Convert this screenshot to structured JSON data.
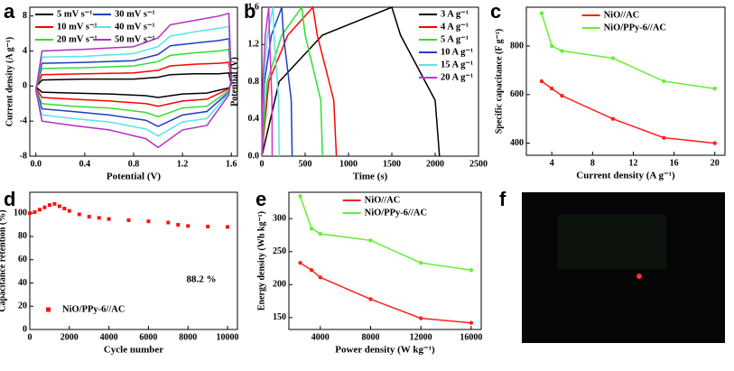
{
  "chart_data": [
    {
      "type": "line",
      "panel_label": "a",
      "xlabel": "Potential (V)",
      "ylabel": "Current density (A g⁻¹)",
      "xlim": [
        -0.05,
        1.65
      ],
      "ylim": [
        -8,
        9
      ],
      "xticks": [
        {
          "value": 0,
          "label": "0.0"
        },
        0.4,
        0.8,
        1.2,
        1.6
      ],
      "yticks": [
        -8,
        -4,
        0,
        4,
        8
      ],
      "legend": "upper left",
      "legend_columns": 2,
      "x": [
        0,
        0.05,
        0.4,
        0.8,
        1.0,
        1.1,
        1.3,
        1.5,
        1.58,
        1.6,
        1.58,
        1.4,
        1.2,
        1.0,
        0.9,
        0.6,
        0.3,
        0.05,
        0
      ],
      "series": [
        {
          "name": "5 mV s⁻¹",
          "color": "#000000",
          "values": [
            -0.1,
            0.7,
            0.8,
            0.8,
            1,
            1.3,
            1.4,
            1.4,
            1.5,
            0.2,
            -0.2,
            -0.8,
            -0.9,
            -1.3,
            -1.1,
            -0.9,
            -0.8,
            -0.7,
            -0.1
          ]
        },
        {
          "name": "10 mV s⁻¹",
          "color": "#ff0000",
          "values": [
            -0.2,
            1.3,
            1.4,
            1.5,
            1.8,
            2.3,
            2.5,
            2.6,
            2.7,
            0.3,
            -0.3,
            -1.5,
            -1.7,
            -2.3,
            -2,
            -1.7,
            -1.5,
            -1.3,
            -0.2
          ]
        },
        {
          "name": "20 mV s⁻¹",
          "color": "#33dd33",
          "values": [
            -0.3,
            2,
            2.1,
            2.3,
            2.8,
            3.5,
            3.8,
            4,
            4.2,
            0.5,
            -0.5,
            -2.3,
            -2.5,
            -3.5,
            -3,
            -2.5,
            -2.3,
            -2,
            -0.3
          ]
        },
        {
          "name": "30 mV s⁻¹",
          "color": "#1f3fbf",
          "values": [
            -0.3,
            2.6,
            2.7,
            2.9,
            3.6,
            4.6,
            4.9,
            5.2,
            5.4,
            0.7,
            -0.7,
            -2.9,
            -3.3,
            -4.6,
            -3.9,
            -3.3,
            -2.9,
            -2.6,
            -0.3
          ]
        },
        {
          "name": "40 mV s⁻¹",
          "color": "#55e6e6",
          "values": [
            -0.4,
            3.3,
            3.4,
            3.7,
            4.5,
            5.7,
            6.2,
            6.6,
            6.8,
            0.8,
            -0.8,
            -3.7,
            -4.1,
            -5.7,
            -4.9,
            -4.1,
            -3.7,
            -3.3,
            -0.4
          ]
        },
        {
          "name": "50 mV s⁻¹",
          "color": "#b030c0",
          "values": [
            -0.5,
            4,
            4.2,
            4.5,
            5.5,
            7,
            7.5,
            8,
            8.3,
            1,
            -1,
            -4.5,
            -5,
            -7,
            -6,
            -5,
            -4.5,
            -4,
            -0.5
          ]
        }
      ]
    },
    {
      "type": "line",
      "panel_label": "b",
      "xlabel": "Time (s)",
      "ylabel": "Potential (V)",
      "xlim": [
        0,
        2500
      ],
      "ylim": [
        0,
        1.6
      ],
      "xticks": [
        0,
        500,
        1000,
        1500,
        2000,
        2500
      ],
      "yticks": [
        {
          "value": 0,
          "label": "0.0"
        },
        0.4,
        0.8,
        1.2,
        1.6
      ],
      "legend": "upper right",
      "legend_columns": 1,
      "series": [
        {
          "name": "3 A g⁻¹",
          "color": "#000000",
          "x": [
            0,
            200,
            700,
            1500,
            1600,
            2000,
            2050
          ],
          "values": [
            0,
            0.8,
            1.3,
            1.6,
            1.3,
            0.6,
            0
          ]
        },
        {
          "name": "4 A g⁻¹",
          "color": "#ff0000",
          "x": [
            0,
            80,
            300,
            590,
            640,
            830,
            860
          ],
          "values": [
            0,
            0.8,
            1.3,
            1.6,
            1.3,
            0.6,
            0
          ]
        },
        {
          "name": "5 A g⁻¹",
          "color": "#33dd33",
          "x": [
            0,
            60,
            230,
            460,
            500,
            680,
            700
          ],
          "values": [
            0,
            0.8,
            1.3,
            1.6,
            1.3,
            0.6,
            0
          ]
        },
        {
          "name": "10 A g⁻¹",
          "color": "#1f3fbf",
          "x": [
            0,
            30,
            110,
            230,
            250,
            340,
            350
          ],
          "values": [
            0,
            0.8,
            1.3,
            1.6,
            1.3,
            0.6,
            0
          ]
        },
        {
          "name": "15 A g⁻¹",
          "color": "#55e6e6",
          "x": [
            0,
            20,
            65,
            130,
            140,
            195,
            200
          ],
          "values": [
            0,
            0.8,
            1.3,
            1.6,
            1.3,
            0.6,
            0
          ]
        },
        {
          "name": "20 A g⁻¹",
          "color": "#d030d0",
          "x": [
            0,
            12,
            40,
            80,
            88,
            117,
            120
          ],
          "values": [
            0,
            0.8,
            1.3,
            1.6,
            1.3,
            0.6,
            0
          ]
        }
      ]
    },
    {
      "type": "line",
      "panel_label": "c",
      "xlabel": "Current density (A g⁻¹)",
      "ylabel": "Specific capacitance (F g⁻¹)",
      "xlim": [
        1.5,
        21
      ],
      "ylim": [
        350,
        960
      ],
      "markers": true,
      "xticks": [
        4,
        8,
        12,
        16,
        20
      ],
      "yticks": [
        400,
        600,
        800
      ],
      "legend": "upper center",
      "legend_columns": 1,
      "x": [
        3,
        4,
        5,
        10,
        15,
        20
      ],
      "series": [
        {
          "name": "NiO//AC",
          "color": "#ff2020",
          "values": [
            655,
            625,
            595,
            500,
            422,
            400
          ]
        },
        {
          "name": "NiO/PPy-6//AC",
          "color": "#66ee33",
          "values": [
            935,
            800,
            780,
            750,
            655,
            625
          ]
        }
      ]
    },
    {
      "type": "scatter",
      "panel_label": "d",
      "xlabel": "Cycle number",
      "ylabel": "Capacitance retention (%)",
      "xlim": [
        0,
        10500
      ],
      "ylim": [
        0,
        118
      ],
      "xticks": [
        0,
        2000,
        4000,
        6000,
        8000,
        10000
      ],
      "yticks": [
        0,
        20,
        40,
        60,
        80,
        100
      ],
      "legend": "lower left",
      "legend_columns": 1,
      "annotations": [
        "88.2 %"
      ],
      "x": [
        0,
        250,
        500,
        750,
        1000,
        1250,
        1500,
        1750,
        2000,
        2500,
        3000,
        3500,
        4000,
        5000,
        6000,
        7000,
        7500,
        8000,
        9000,
        10000
      ],
      "series": [
        {
          "name": "NiO/PPy-6//AC",
          "color": "#ff1010",
          "values": [
            100,
            101,
            103,
            105,
            107,
            108,
            106,
            104,
            102,
            99,
            97,
            96,
            95,
            94,
            93,
            92,
            90,
            89,
            88.5,
            88.2
          ]
        }
      ]
    },
    {
      "type": "line",
      "panel_label": "e",
      "xlabel": "Power density (W kg⁻¹)",
      "ylabel": "Energy density (Wh kg⁻¹)",
      "xlim": [
        1500,
        16800
      ],
      "ylim": [
        132,
        340
      ],
      "markers": true,
      "xticks": [
        4000,
        8000,
        12000,
        16000
      ],
      "yticks": [
        150,
        200,
        250,
        300
      ],
      "legend": "upper center",
      "legend_columns": 1,
      "x": [
        2400,
        3300,
        4000,
        8000,
        12000,
        16000
      ],
      "series": [
        {
          "name": "NiO//AC",
          "color": "#ff2020",
          "values": [
            233,
            222,
            211,
            178,
            149,
            142
          ]
        },
        {
          "name": "NiO/PPy-6//AC",
          "color": "#66ee33",
          "values": [
            334,
            285,
            277,
            267,
            233,
            222
          ]
        }
      ]
    },
    {
      "type": "image",
      "panel_label": "f"
    }
  ]
}
